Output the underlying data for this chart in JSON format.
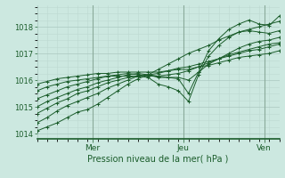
{
  "xlabel": "Pression niveau de la mer( hPa )",
  "bg_color": "#cce8e0",
  "plot_bg_color": "#cce8e0",
  "grid_major_color": "#aac8c0",
  "grid_minor_color": "#bcd8d0",
  "line_color": "#1a5c2a",
  "tick_color": "#1a5c2a",
  "label_color": "#1a5c2a",
  "vline_color": "#8aaa9a",
  "ylim": [
    1013.8,
    1018.8
  ],
  "yticks": [
    1014,
    1015,
    1016,
    1017,
    1018
  ],
  "xlim": [
    0,
    96
  ],
  "day_labels": [
    [
      "Mer",
      22
    ],
    [
      "Jeu",
      58
    ],
    [
      "Ven",
      90
    ]
  ],
  "series": [
    [
      0,
      1014.1,
      4,
      1014.25,
      8,
      1014.4,
      12,
      1014.6,
      16,
      1014.8,
      20,
      1014.9,
      24,
      1015.1,
      28,
      1015.35,
      32,
      1015.6,
      36,
      1015.85,
      40,
      1016.05,
      44,
      1016.2,
      48,
      1016.4,
      52,
      1016.6,
      56,
      1016.8,
      60,
      1017.0,
      64,
      1017.15,
      68,
      1017.3,
      72,
      1017.5,
      76,
      1017.65,
      80,
      1017.8,
      84,
      1017.9,
      88,
      1018.0,
      92,
      1018.1,
      96,
      1018.2
    ],
    [
      0,
      1014.4,
      4,
      1014.6,
      8,
      1014.85,
      12,
      1015.05,
      16,
      1015.2,
      20,
      1015.35,
      24,
      1015.5,
      28,
      1015.7,
      32,
      1015.85,
      36,
      1016.0,
      40,
      1016.15,
      44,
      1016.2,
      48,
      1016.15,
      52,
      1016.1,
      56,
      1016.05,
      60,
      1015.5,
      64,
      1016.3,
      68,
      1017.1,
      72,
      1017.55,
      76,
      1017.9,
      80,
      1018.1,
      84,
      1018.25,
      88,
      1018.1,
      92,
      1018.05,
      96,
      1018.4
    ],
    [
      0,
      1014.75,
      4,
      1014.95,
      8,
      1015.15,
      12,
      1015.3,
      16,
      1015.5,
      20,
      1015.6,
      24,
      1015.75,
      28,
      1015.9,
      32,
      1016.0,
      36,
      1016.1,
      40,
      1016.15,
      44,
      1016.1,
      48,
      1015.85,
      52,
      1015.75,
      56,
      1015.6,
      60,
      1015.2,
      64,
      1016.2,
      68,
      1016.9,
      72,
      1017.3,
      76,
      1017.6,
      80,
      1017.8,
      84,
      1017.85,
      88,
      1017.8,
      92,
      1017.75,
      96,
      1017.85
    ],
    [
      0,
      1015.0,
      4,
      1015.2,
      8,
      1015.35,
      12,
      1015.5,
      16,
      1015.65,
      20,
      1015.75,
      24,
      1015.9,
      28,
      1016.0,
      32,
      1016.1,
      36,
      1016.2,
      40,
      1016.25,
      44,
      1016.2,
      48,
      1016.1,
      52,
      1016.1,
      56,
      1016.1,
      60,
      1016.0,
      64,
      1016.3,
      68,
      1016.6,
      72,
      1016.8,
      76,
      1017.0,
      80,
      1017.2,
      84,
      1017.35,
      88,
      1017.45,
      92,
      1017.5,
      96,
      1017.6
    ],
    [
      0,
      1015.3,
      4,
      1015.45,
      8,
      1015.6,
      12,
      1015.75,
      16,
      1015.85,
      20,
      1015.95,
      24,
      1016.05,
      28,
      1016.15,
      32,
      1016.2,
      36,
      1016.25,
      40,
      1016.2,
      44,
      1016.15,
      48,
      1016.15,
      52,
      1016.2,
      56,
      1016.25,
      60,
      1016.35,
      64,
      1016.5,
      68,
      1016.65,
      72,
      1016.8,
      76,
      1016.95,
      80,
      1017.05,
      84,
      1017.15,
      88,
      1017.25,
      92,
      1017.35,
      96,
      1017.4
    ],
    [
      0,
      1015.6,
      4,
      1015.75,
      8,
      1015.85,
      12,
      1015.95,
      16,
      1016.0,
      20,
      1016.05,
      24,
      1016.1,
      28,
      1016.15,
      32,
      1016.15,
      36,
      1016.15,
      40,
      1016.15,
      44,
      1016.2,
      48,
      1016.25,
      52,
      1016.35,
      56,
      1016.45,
      60,
      1016.5,
      64,
      1016.6,
      68,
      1016.7,
      72,
      1016.8,
      76,
      1016.9,
      80,
      1017.0,
      84,
      1017.1,
      88,
      1017.15,
      92,
      1017.25,
      96,
      1017.35
    ],
    [
      0,
      1015.85,
      4,
      1015.95,
      8,
      1016.05,
      12,
      1016.1,
      16,
      1016.15,
      20,
      1016.2,
      24,
      1016.25,
      28,
      1016.25,
      32,
      1016.3,
      36,
      1016.3,
      40,
      1016.3,
      44,
      1016.3,
      48,
      1016.3,
      52,
      1016.35,
      56,
      1016.4,
      60,
      1016.4,
      64,
      1016.5,
      68,
      1016.55,
      72,
      1016.65,
      76,
      1016.75,
      80,
      1016.85,
      84,
      1016.9,
      88,
      1016.95,
      92,
      1017.0,
      96,
      1017.1
    ]
  ]
}
